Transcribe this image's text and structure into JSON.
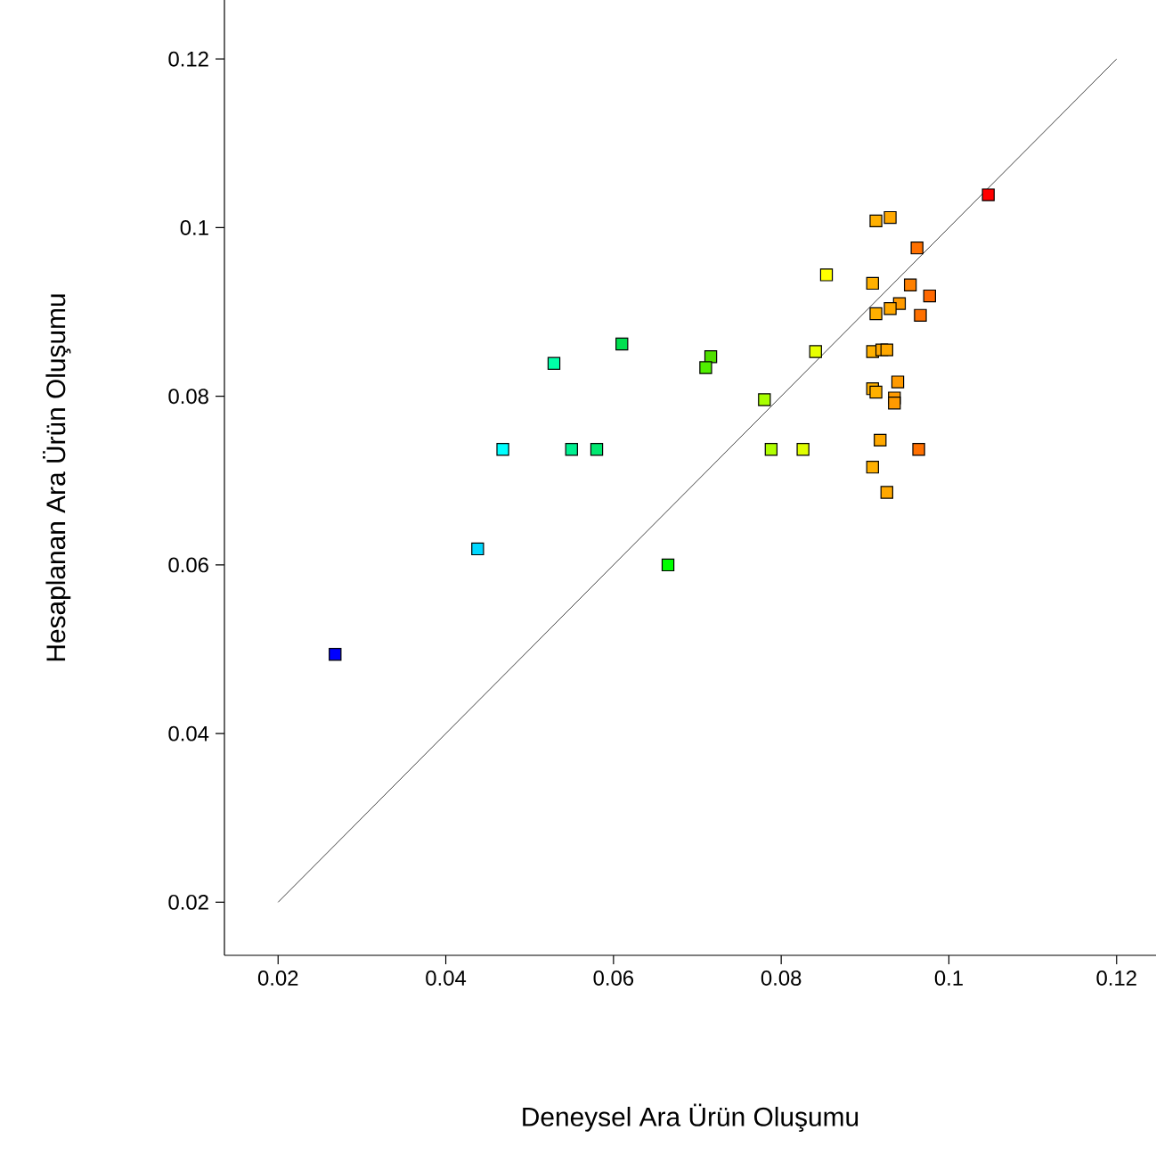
{
  "chart_data": {
    "type": "scatter",
    "xlabel": "Deneysel Ara Ürün Oluşumu",
    "ylabel": "Hesaplanan Ara Ürün Oluşumu",
    "xlim": [
      0.0136,
      0.1247
    ],
    "ylim": [
      0.0137,
      0.127
    ],
    "xticks": [
      0.02,
      0.04,
      0.06,
      0.08,
      0.1,
      0.12
    ],
    "yticks": [
      0.02,
      0.04,
      0.06,
      0.08,
      0.1,
      0.12
    ],
    "series": [
      {
        "marker": "square",
        "x": [
          0.0268,
          0.0438,
          0.0468,
          0.0529,
          0.055,
          0.058,
          0.061,
          0.0665,
          0.0716,
          0.071,
          0.078,
          0.0788,
          0.0826,
          0.0841,
          0.0854,
          0.1047,
          0.0913,
          0.093,
          0.0962,
          0.0909,
          0.0954,
          0.0977,
          0.0941,
          0.093,
          0.0913,
          0.0966,
          0.0909,
          0.092,
          0.0926,
          0.0939,
          0.0909,
          0.0913,
          0.0935,
          0.0935,
          0.0918,
          0.0964,
          0.0909,
          0.0926
        ],
        "values": [
          0.0494,
          0.0619,
          0.0737,
          0.0839,
          0.0737,
          0.0737,
          0.0862,
          0.06,
          0.0847,
          0.0834,
          0.0796,
          0.0737,
          0.0737,
          0.0853,
          0.0944,
          0.1039,
          0.1008,
          0.1012,
          0.0976,
          0.0934,
          0.0932,
          0.0919,
          0.091,
          0.0904,
          0.0898,
          0.0896,
          0.0853,
          0.0855,
          0.0855,
          0.0817,
          0.0809,
          0.0805,
          0.0798,
          0.0792,
          0.0748,
          0.0737,
          0.0716,
          0.0686
        ],
        "colors": [
          "#0000ff",
          "#00d8ff",
          "#00ffff",
          "#00ffa8",
          "#00f090",
          "#00e870",
          "#00e050",
          "#00ff00",
          "#50e000",
          "#50f000",
          "#a8ff00",
          "#b0ff00",
          "#e0ff00",
          "#e8ff00",
          "#ffff00",
          "#ff0000",
          "#ffb000",
          "#ffa800",
          "#ff7000",
          "#ffb000",
          "#ff8000",
          "#ff6800",
          "#ff9a00",
          "#ffa800",
          "#ffb000",
          "#ff7000",
          "#ffb000",
          "#ffa800",
          "#ffa800",
          "#ff9a00",
          "#ffb000",
          "#ffb000",
          "#ff9a00",
          "#ff9a00",
          "#ffa800",
          "#ff7000",
          "#ffb000",
          "#ffa800"
        ]
      },
      {
        "type": "line",
        "color": "#404040",
        "x": [
          0.02,
          0.12
        ],
        "values": [
          0.02,
          0.12
        ]
      }
    ]
  }
}
